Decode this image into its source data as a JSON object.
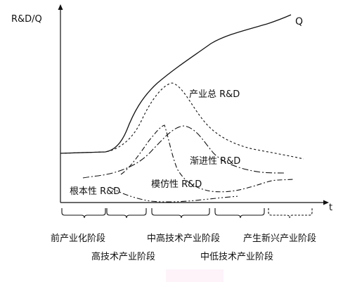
{
  "axes": {
    "y_label": "R&D/Q",
    "x_label": "t"
  },
  "curves": {
    "q": "Q",
    "industry_total": "产业总 R&D",
    "incremental": "渐进性 R&D",
    "imitation": "模仿性 R&D",
    "radical": "根本性 R&D"
  },
  "stages": {
    "pre_industrialization": "前产业化阶段",
    "high_tech": "高技术产业阶段",
    "mid_high_tech": "中高技术产业阶段",
    "mid_low_tech": "中低技术产业阶段",
    "emerging": "产生新兴产业阶段"
  },
  "colors": {
    "ink": "#111111",
    "background": "#ffffff",
    "artifact": "#fdf3f9"
  }
}
